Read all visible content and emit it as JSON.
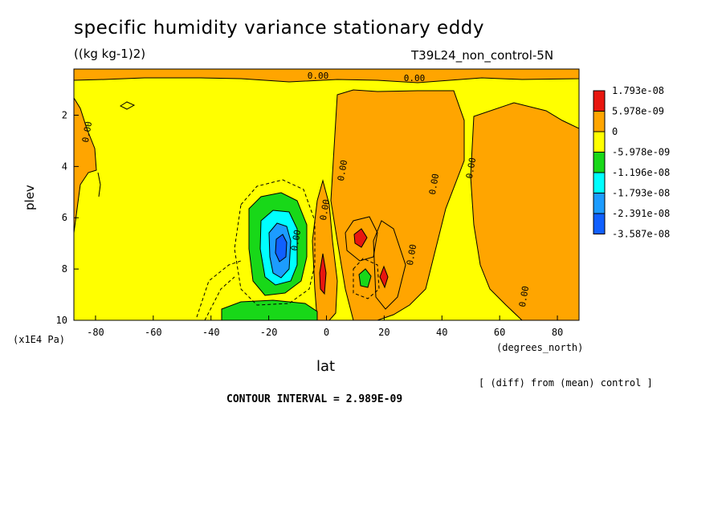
{
  "title": "specific humidity variance stationary eddy",
  "units": "((kg kg-1)2)",
  "run_label": "T39L24_non_control-5N",
  "ylabel": "plev",
  "y_unit": "(x1E4 Pa)",
  "xlabel": "lat",
  "x_unit": "(degrees_north)",
  "diff_note": "[ (diff) from (mean) control ]",
  "contour_interval": "CONTOUR INTERVAL = 2.989E-09",
  "chart_data": {
    "type": "heatmap",
    "title": "specific humidity variance stationary eddy",
    "xlabel": "lat",
    "ylabel": "plev",
    "xlim": [
      -87.5,
      87.5
    ],
    "ylim": [
      10,
      0.2
    ],
    "x_ticks": [
      -80,
      -60,
      -40,
      -20,
      0,
      20,
      40,
      60,
      80
    ],
    "y_ticks": [
      2,
      4,
      6,
      8,
      10
    ],
    "contour_labels": [
      "0.00",
      "0.00",
      "0.00",
      "0.00",
      "0.00",
      "0.00",
      "0.00",
      "0.00",
      "0.00",
      "0.00"
    ],
    "legend": {
      "placement": "right",
      "levels": [
        "1.793e-08",
        "5.978e-09",
        "0",
        "-5.978e-09",
        "-1.196e-08",
        "-1.793e-08",
        "-2.391e-08",
        "-3.587e-08"
      ],
      "colors": [
        "#e8160f",
        "#ffa500",
        "#ffff00",
        "#18d818",
        "#00ffff",
        "#1c9cff",
        "#1060ff"
      ]
    },
    "features": [
      {
        "kind": "minimum",
        "lat": -16,
        "plev": 7.3,
        "value": -3e-08
      },
      {
        "kind": "minimum",
        "lat": -18,
        "plev": 9.8,
        "value": -9e-09
      },
      {
        "kind": "minimum",
        "lat": 13,
        "plev": 8.5,
        "value": -9e-09
      },
      {
        "kind": "maximum",
        "lat": 13,
        "plev": 6.8,
        "value": 2e-08
      },
      {
        "kind": "maximum",
        "lat": -1,
        "plev": 8.2,
        "value": 2e-08
      },
      {
        "kind": "maximum",
        "lat": 20,
        "plev": 8.3,
        "value": 2e-08
      }
    ]
  }
}
